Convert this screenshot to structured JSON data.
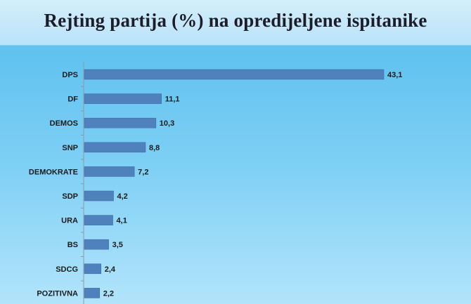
{
  "chart_data": {
    "type": "bar",
    "orientation": "horizontal",
    "title": "Rejting partija (%) na opredijeljene ispitanike",
    "categories": [
      "DPS",
      "DF",
      "DEMOS",
      "SNP",
      "DEMOKRATE",
      "SDP",
      "URA",
      "BS",
      "SDCG",
      "POZITIVNA"
    ],
    "values": [
      43.1,
      11.1,
      10.3,
      8.8,
      7.2,
      4.2,
      4.1,
      3.5,
      2.4,
      2.2
    ],
    "value_labels": [
      "43,1",
      "11,1",
      "10,3",
      "8,8",
      "7,2",
      "4,2",
      "4,1",
      "3,5",
      "2,4",
      "2,2"
    ],
    "xlabel": "",
    "ylabel": "",
    "xlim": [
      0,
      43.1
    ],
    "grid": false,
    "legend": "none",
    "bar_color": "#4f81bd"
  }
}
